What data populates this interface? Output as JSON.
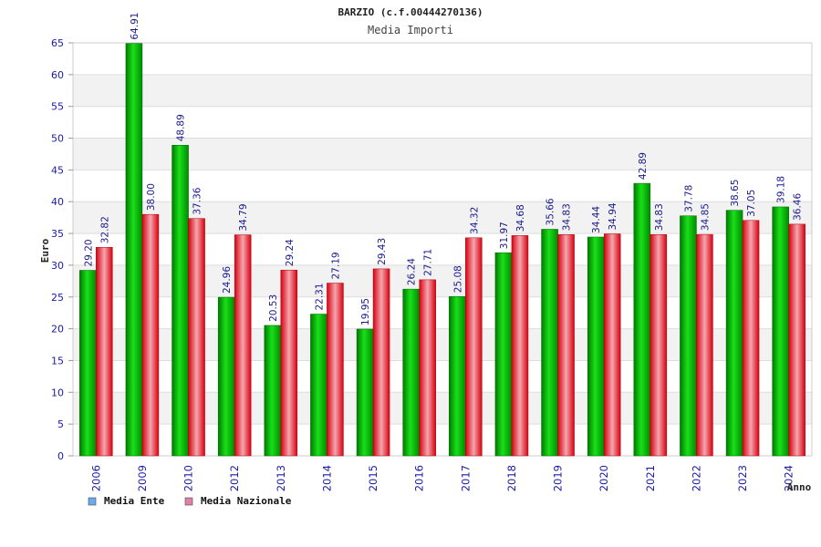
{
  "chart_data": {
    "type": "bar",
    "title": "BARZIO (c.f.00444270136)",
    "subtitle": "Media Importi",
    "ylabel": "Euro",
    "xlabel": "Anno",
    "ylim": [
      0,
      65
    ],
    "yticks": [
      0,
      5,
      10,
      15,
      20,
      25,
      30,
      35,
      40,
      45,
      50,
      55,
      60,
      65
    ],
    "ytick_labels": [
      "0",
      "5",
      "10",
      "15",
      "20",
      "25",
      "30",
      "35",
      "40",
      "45",
      "50",
      "55",
      "60",
      "65"
    ],
    "grid": true,
    "legend_position": "bottom-left",
    "categories": [
      "2006",
      "2009",
      "2010",
      "2012",
      "2013",
      "2014",
      "2015",
      "2016",
      "2017",
      "2018",
      "2019",
      "2020",
      "2021",
      "2022",
      "2023",
      "2024"
    ],
    "series": [
      {
        "name": "Media Ente",
        "color": "#00b300",
        "legend_color": "#6aaaf0",
        "values": [
          29.2,
          64.91,
          48.89,
          24.96,
          20.53,
          22.31,
          19.95,
          26.24,
          25.08,
          31.97,
          35.66,
          34.44,
          42.89,
          37.78,
          38.65,
          39.18
        ],
        "labels": [
          "29.20",
          "64.91",
          "48.89",
          "24.96",
          "20.53",
          "22.31",
          "19.95",
          "26.24",
          "25.08",
          "31.97",
          "35.66",
          "34.44",
          "42.89",
          "37.78",
          "38.65",
          "39.18"
        ]
      },
      {
        "name": "Media Nazionale",
        "color": "#e8202a",
        "legend_color": "#e080a8",
        "values": [
          32.82,
          38.0,
          37.36,
          34.79,
          29.24,
          27.19,
          29.43,
          27.71,
          34.32,
          34.68,
          34.83,
          34.94,
          34.83,
          34.85,
          37.05,
          36.46
        ],
        "labels": [
          "32.82",
          "38.00",
          "37.36",
          "34.79",
          "29.24",
          "27.19",
          "29.43",
          "27.71",
          "34.32",
          "34.68",
          "34.83",
          "34.94",
          "34.83",
          "34.85",
          "37.05",
          "36.46"
        ]
      }
    ]
  }
}
